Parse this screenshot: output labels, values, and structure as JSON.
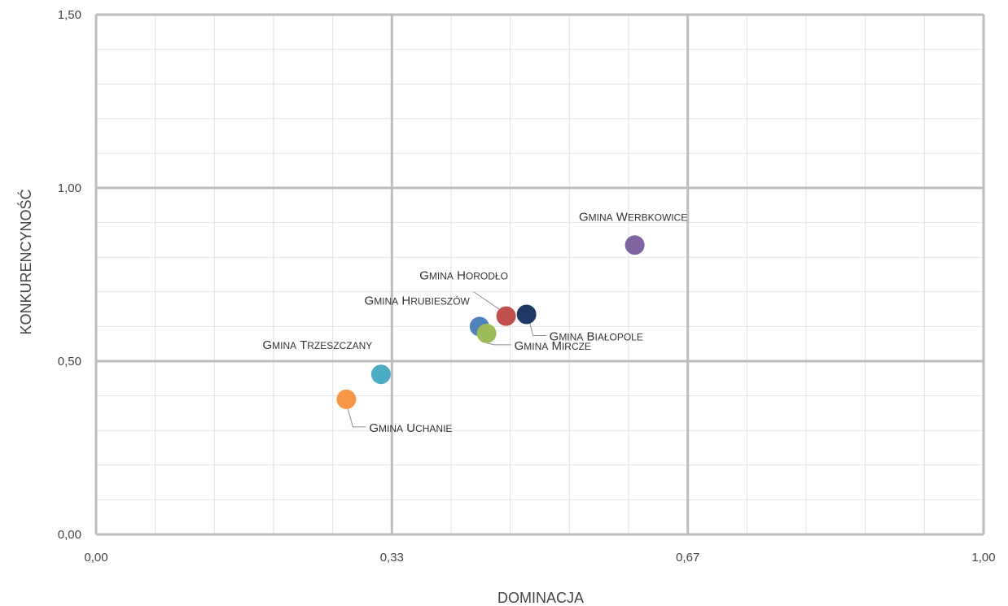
{
  "chart_data": {
    "type": "scatter",
    "xlabel": "DOMINACJA",
    "ylabel": "KONKURENCYNOŚĆ",
    "xlim": [
      0,
      1
    ],
    "ylim": [
      0,
      1.5
    ],
    "x_ticks": [
      {
        "value": 0.0,
        "label": "0,00"
      },
      {
        "value": 0.3333,
        "label": "0,33"
      },
      {
        "value": 0.6667,
        "label": "0,67"
      },
      {
        "value": 1.0,
        "label": "1,00"
      }
    ],
    "y_ticks": [
      {
        "value": 0.0,
        "label": "0,00"
      },
      {
        "value": 0.5,
        "label": "0,50"
      },
      {
        "value": 1.0,
        "label": "1,00"
      },
      {
        "value": 1.5,
        "label": "1,50"
      }
    ],
    "grid": true,
    "points": [
      {
        "name": "Gmina Werbkowice",
        "label_first": "G",
        "label_rest": "MINA",
        "label_word_first": "W",
        "label_word_rest": "ERBKOWICE",
        "x": 0.607,
        "y": 0.835,
        "color": "#8064a2"
      },
      {
        "name": "Gmina Horodło",
        "label_first": "G",
        "label_rest": "MINA",
        "label_word_first": "H",
        "label_word_rest": "ORODŁO",
        "x": 0.462,
        "y": 0.63,
        "color": "#c0504d"
      },
      {
        "name": "Gmina Białopole",
        "label_first": "G",
        "label_rest": "MINA",
        "label_word_first": "B",
        "label_word_rest": "IAŁOPOLE",
        "x": 0.485,
        "y": 0.635,
        "color": "#1f3864"
      },
      {
        "name": "Gmina Hrubieszów",
        "label_first": "G",
        "label_rest": "MINA",
        "label_word_first": "H",
        "label_word_rest": "RUBIESZÓW",
        "x": 0.432,
        "y": 0.6,
        "color": "#4f81bd"
      },
      {
        "name": "Gmina Mircze",
        "label_first": "G",
        "label_rest": "MINA",
        "label_word_first": "M",
        "label_word_rest": "IRCZE",
        "x": 0.44,
        "y": 0.58,
        "color": "#9bbb59"
      },
      {
        "name": "Gmina Trzeszczany",
        "label_first": "G",
        "label_rest": "MINA",
        "label_word_first": "T",
        "label_word_rest": "RZESZCZANY",
        "x": 0.321,
        "y": 0.462,
        "color": "#4bacc6"
      },
      {
        "name": "Gmina Uchanie",
        "label_first": "G",
        "label_rest": "MINA",
        "label_word_first": "U",
        "label_word_rest": "CHANIE",
        "x": 0.282,
        "y": 0.39,
        "color": "#f79646"
      }
    ]
  }
}
